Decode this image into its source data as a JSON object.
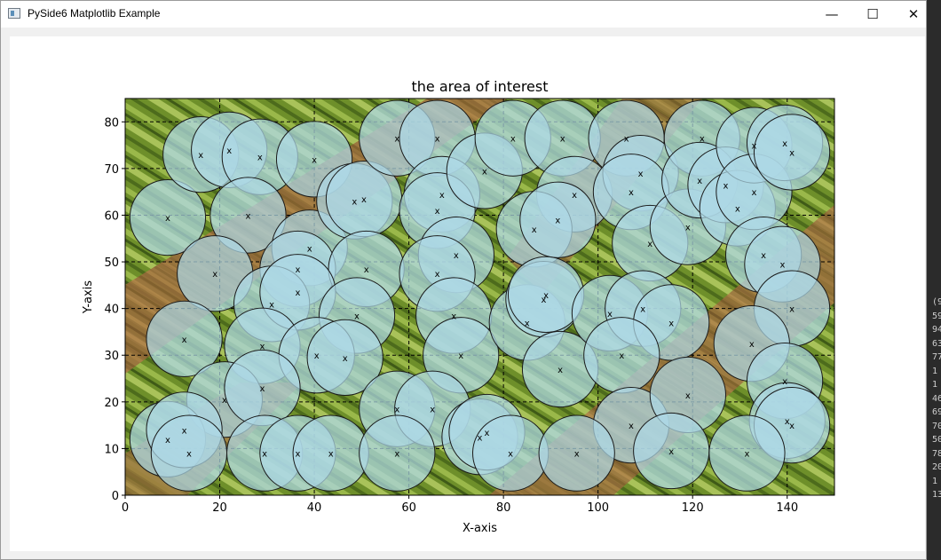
{
  "window": {
    "title": "PySide6 Matplotlib Example",
    "minimize_glyph": "—",
    "maximize_glyph": "☐",
    "close_glyph": "✕"
  },
  "side_text": [
    "(9",
    "59",
    "94",
    "63",
    "77",
    "1",
    "1",
    "46",
    "69",
    "70",
    "50",
    "78",
    "20",
    "1",
    "13"
  ],
  "chart_data": {
    "type": "scatter",
    "title": "the area of interest",
    "xlabel": "X-axis",
    "ylabel": "Y-axis",
    "xlim": [
      0,
      150
    ],
    "ylim": [
      0,
      85
    ],
    "xticks": [
      0,
      20,
      40,
      60,
      80,
      100,
      120,
      140
    ],
    "yticks": [
      0,
      10,
      20,
      30,
      40,
      50,
      60,
      70,
      80
    ],
    "grid": "on (black dashed)",
    "background": "aerial photograph of farm fields",
    "marker_label": "x",
    "circle_radius": 8,
    "circle_color": "#add8e6",
    "points": [
      {
        "x": 9,
        "y": 59.5
      },
      {
        "x": 16,
        "y": 73
      },
      {
        "x": 22,
        "y": 74
      },
      {
        "x": 28.5,
        "y": 72.5
      },
      {
        "x": 40,
        "y": 72
      },
      {
        "x": 26,
        "y": 60
      },
      {
        "x": 19,
        "y": 47.5
      },
      {
        "x": 39,
        "y": 53
      },
      {
        "x": 36.5,
        "y": 48.5
      },
      {
        "x": 48.5,
        "y": 63
      },
      {
        "x": 50.5,
        "y": 63.5
      },
      {
        "x": 51,
        "y": 48.5
      },
      {
        "x": 57.5,
        "y": 76.5
      },
      {
        "x": 66,
        "y": 76.5
      },
      {
        "x": 67,
        "y": 64.5
      },
      {
        "x": 66,
        "y": 61
      },
      {
        "x": 70,
        "y": 51.5
      },
      {
        "x": 66,
        "y": 47.5
      },
      {
        "x": 76,
        "y": 69.5
      },
      {
        "x": 82,
        "y": 76.5
      },
      {
        "x": 92.5,
        "y": 76.5
      },
      {
        "x": 95,
        "y": 64.5
      },
      {
        "x": 86.5,
        "y": 57
      },
      {
        "x": 91.5,
        "y": 59
      },
      {
        "x": 106,
        "y": 76.5
      },
      {
        "x": 109,
        "y": 69
      },
      {
        "x": 107,
        "y": 65
      },
      {
        "x": 111,
        "y": 54
      },
      {
        "x": 119,
        "y": 57.5
      },
      {
        "x": 122,
        "y": 76.5
      },
      {
        "x": 121.5,
        "y": 67.5
      },
      {
        "x": 127,
        "y": 66.5
      },
      {
        "x": 129.5,
        "y": 61.5
      },
      {
        "x": 133,
        "y": 75
      },
      {
        "x": 133,
        "y": 65
      },
      {
        "x": 139.5,
        "y": 75.5
      },
      {
        "x": 141,
        "y": 73.5
      },
      {
        "x": 135,
        "y": 51.5
      },
      {
        "x": 139,
        "y": 49.5
      },
      {
        "x": 141,
        "y": 40
      },
      {
        "x": 12.5,
        "y": 33.5
      },
      {
        "x": 31,
        "y": 41
      },
      {
        "x": 36.5,
        "y": 43.5
      },
      {
        "x": 49,
        "y": 38.5
      },
      {
        "x": 29,
        "y": 32
      },
      {
        "x": 40.5,
        "y": 30
      },
      {
        "x": 46.5,
        "y": 29.5
      },
      {
        "x": 69.5,
        "y": 38.5
      },
      {
        "x": 71,
        "y": 30
      },
      {
        "x": 85,
        "y": 37
      },
      {
        "x": 88.5,
        "y": 42
      },
      {
        "x": 89,
        "y": 43
      },
      {
        "x": 92,
        "y": 27
      },
      {
        "x": 102.5,
        "y": 39
      },
      {
        "x": 109.5,
        "y": 40
      },
      {
        "x": 115.5,
        "y": 37
      },
      {
        "x": 105,
        "y": 30
      },
      {
        "x": 132.5,
        "y": 32.5
      },
      {
        "x": 139.5,
        "y": 24.5
      },
      {
        "x": 21,
        "y": 20.5
      },
      {
        "x": 29,
        "y": 23
      },
      {
        "x": 57.5,
        "y": 18.5
      },
      {
        "x": 65,
        "y": 18.5
      },
      {
        "x": 107,
        "y": 15
      },
      {
        "x": 119,
        "y": 21.5
      },
      {
        "x": 140,
        "y": 16
      },
      {
        "x": 141,
        "y": 15
      },
      {
        "x": 9,
        "y": 12
      },
      {
        "x": 12.5,
        "y": 14
      },
      {
        "x": 13.5,
        "y": 9
      },
      {
        "x": 29.5,
        "y": 9
      },
      {
        "x": 36.5,
        "y": 9
      },
      {
        "x": 43.5,
        "y": 9
      },
      {
        "x": 57.5,
        "y": 9
      },
      {
        "x": 75,
        "y": 12.5
      },
      {
        "x": 76.5,
        "y": 13.5
      },
      {
        "x": 81.5,
        "y": 9
      },
      {
        "x": 95.5,
        "y": 9
      },
      {
        "x": 115.5,
        "y": 9.5
      },
      {
        "x": 131.5,
        "y": 9
      }
    ]
  }
}
